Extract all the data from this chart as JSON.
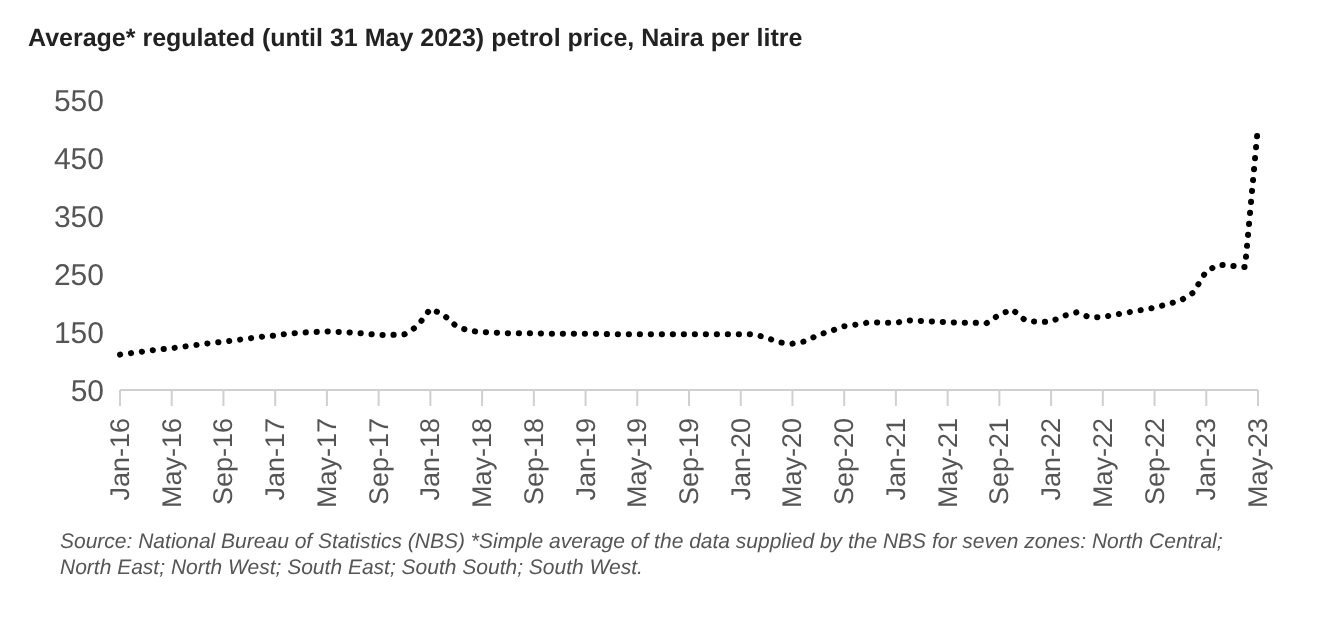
{
  "chart_data": {
    "type": "line",
    "title": "Average* regulated (until 31 May 2023) petrol price, Naira per litre",
    "categories": [
      "Jan-16",
      null,
      null,
      null,
      "May-16",
      null,
      null,
      null,
      "Sep-16",
      null,
      null,
      null,
      "Jan-17",
      null,
      null,
      null,
      "May-17",
      null,
      null,
      null,
      "Sep-17",
      null,
      null,
      null,
      "Jan-18",
      null,
      null,
      null,
      "May-18",
      null,
      null,
      null,
      "Sep-18",
      null,
      null,
      null,
      "Jan-19",
      null,
      null,
      null,
      "May-19",
      null,
      null,
      null,
      "Sep-19",
      null,
      null,
      null,
      "Jan-20",
      null,
      null,
      null,
      "May-20",
      null,
      null,
      null,
      "Sep-20",
      null,
      null,
      null,
      "Jan-21",
      null,
      null,
      null,
      "May-21",
      null,
      null,
      null,
      "Sep-21",
      null,
      null,
      null,
      "Jan-22",
      null,
      null,
      null,
      "May-22",
      null,
      null,
      null,
      "Sep-22",
      null,
      null,
      null,
      "Jan-23",
      null,
      null,
      null,
      "May-23"
    ],
    "series": [
      {
        "color": "#000000",
        "values": [
          111,
          114,
          117,
          120,
          122,
          125,
          128,
          131,
          133,
          136,
          139,
          142,
          144,
          147,
          149,
          150,
          151,
          150,
          149,
          147,
          145,
          145,
          146,
          160,
          190,
          180,
          160,
          152,
          150,
          149,
          148,
          148,
          148,
          147,
          147,
          147,
          147,
          147,
          146,
          146,
          146,
          146,
          146,
          146,
          146,
          146,
          146,
          146,
          146,
          146,
          140,
          132,
          130,
          134,
          145,
          152,
          160,
          163,
          167,
          166,
          166,
          170,
          169,
          168,
          167,
          166,
          166,
          165,
          180,
          189,
          170,
          167,
          168,
          178,
          184,
          175,
          176,
          180,
          184,
          188,
          192,
          198,
          204,
          218,
          255,
          266,
          264,
          262,
          505
        ]
      }
    ],
    "ylim": [
      50,
      550
    ],
    "yticks": [
      50,
      150,
      250,
      350,
      450,
      550
    ],
    "grid": false,
    "legend": false,
    "marker": "none",
    "line_style": "dotted",
    "annotations": [
      "Source: National Bureau of Statistics (NBS)  *Simple average of the data supplied by the NBS for seven zones: North Central; North East; North West; South East; South South; South West."
    ]
  }
}
